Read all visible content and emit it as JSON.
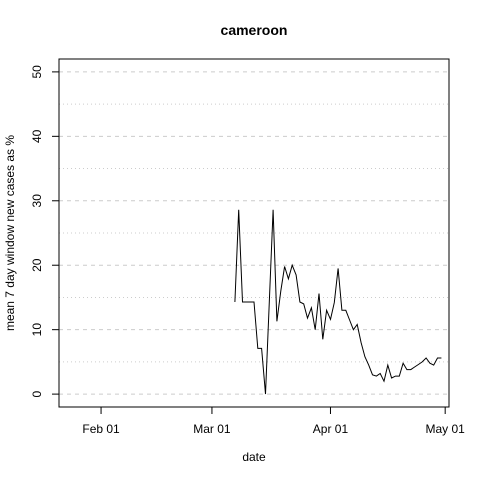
{
  "chart_data": {
    "type": "line",
    "title": "cameroon",
    "xlabel": "date",
    "ylabel": "mean  7  day window new cases as %",
    "xlim": [
      "2020-01-21",
      "2020-05-02"
    ],
    "ylim": [
      -2,
      52
    ],
    "x_ticks": [
      {
        "date": "2020-02-01",
        "label": "Feb 01"
      },
      {
        "date": "2020-03-01",
        "label": "Mar 01"
      },
      {
        "date": "2020-04-01",
        "label": "Apr 01"
      },
      {
        "date": "2020-05-01",
        "label": "May 01"
      }
    ],
    "y_ticks": [
      0,
      10,
      20,
      30,
      40,
      50
    ],
    "grid": {
      "major": [
        0,
        10,
        20,
        30,
        40,
        50
      ],
      "minor": [
        5,
        15,
        25,
        35,
        45
      ],
      "style": "dashed",
      "color": "#cccccc"
    },
    "line_color": "#000000",
    "series": [
      {
        "x": [
          "2020-03-07",
          "2020-03-08",
          "2020-03-09",
          "2020-03-10",
          "2020-03-11",
          "2020-03-12",
          "2020-03-13",
          "2020-03-14",
          "2020-03-15",
          "2020-03-16",
          "2020-03-17",
          "2020-03-18",
          "2020-03-19",
          "2020-03-20",
          "2020-03-21",
          "2020-03-22",
          "2020-03-23",
          "2020-03-24",
          "2020-03-25",
          "2020-03-26",
          "2020-03-27",
          "2020-03-28",
          "2020-03-29",
          "2020-03-30",
          "2020-03-31",
          "2020-04-01",
          "2020-04-02",
          "2020-04-03",
          "2020-04-04",
          "2020-04-05",
          "2020-04-06",
          "2020-04-07",
          "2020-04-08",
          "2020-04-09",
          "2020-04-10",
          "2020-04-11",
          "2020-04-12",
          "2020-04-13",
          "2020-04-14",
          "2020-04-15",
          "2020-04-16",
          "2020-04-17",
          "2020-04-18",
          "2020-04-19",
          "2020-04-20",
          "2020-04-21",
          "2020-04-22",
          "2020-04-23",
          "2020-04-24",
          "2020-04-25",
          "2020-04-26",
          "2020-04-27",
          "2020-04-28",
          "2020-04-29",
          "2020-04-30"
        ],
        "y": [
          14.3,
          28.6,
          14.3,
          14.3,
          14.3,
          14.3,
          7.1,
          7.1,
          0.0,
          14.3,
          28.6,
          11.3,
          16.0,
          19.8,
          17.9,
          20.0,
          18.5,
          14.3,
          14.0,
          11.8,
          13.4,
          10.0,
          15.6,
          8.5,
          13.0,
          11.6,
          14.2,
          19.5,
          13.0,
          13.0,
          11.5,
          10.0,
          10.8,
          8.0,
          5.8,
          4.5,
          3.0,
          2.8,
          3.2,
          2.0,
          4.5,
          2.5,
          2.8,
          2.8,
          4.8,
          3.8,
          3.8,
          4.2,
          4.6,
          5.0,
          5.6,
          4.8,
          4.5,
          5.6,
          5.6
        ]
      }
    ]
  }
}
